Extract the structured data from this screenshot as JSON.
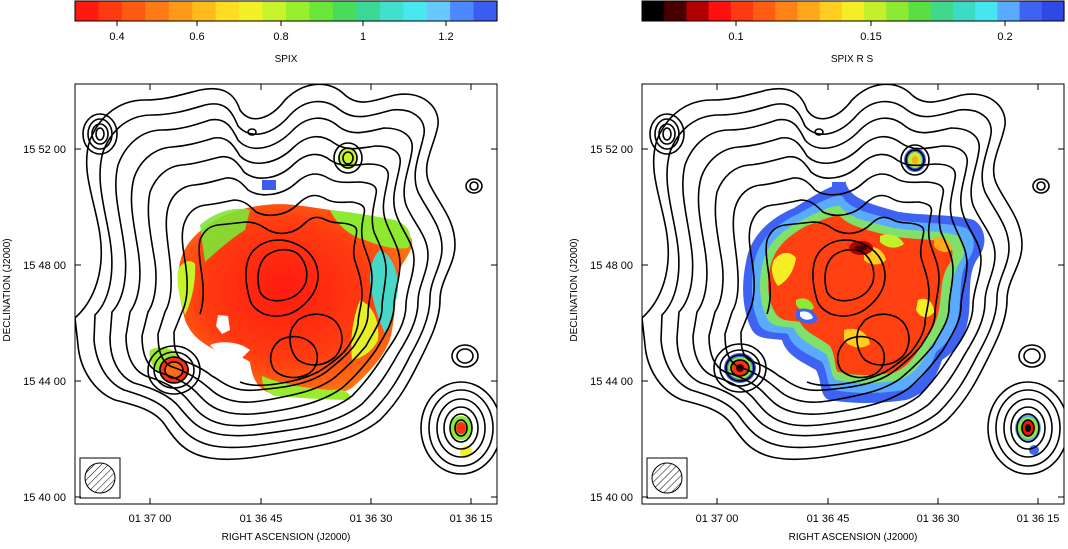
{
  "left": {
    "colorbar": {
      "label": "SPIX",
      "ticks": [
        "0.4",
        "0.6",
        "0.8",
        "1",
        "1.2"
      ],
      "colors": [
        "#ff1a10",
        "#ff3a10",
        "#ff5a12",
        "#ff7a14",
        "#ff9a18",
        "#ffbb1c",
        "#ffdd22",
        "#f2f026",
        "#c8f22a",
        "#98ef30",
        "#6ae63a",
        "#48dc5a",
        "#3cd896",
        "#40e0cc",
        "#48e8f0",
        "#66c8ff",
        "#4d88ff",
        "#3a5cf0"
      ]
    },
    "yaxis_label": "DECLINATION  (J2000)",
    "xaxis_label": "RIGHT ASCENSION  (J2000)",
    "yticks": [
      "15 52 00",
      "15 48 00",
      "15 44 00",
      "15 40 00"
    ],
    "xticks": [
      "01 37 00",
      "01 36 45",
      "01 36 30",
      "01 36 15"
    ]
  },
  "right": {
    "colorbar": {
      "label": "SPIX R   S",
      "ticks": [
        "0.1",
        "0.15",
        "0.2"
      ],
      "colors": [
        "#000000",
        "#4a0000",
        "#b00000",
        "#ff1010",
        "#ff3a10",
        "#ff5e12",
        "#ff8216",
        "#ffa81a",
        "#ffce20",
        "#f4ee26",
        "#c4f02a",
        "#8cea32",
        "#5ade44",
        "#40d88a",
        "#3cdcc4",
        "#46e6f0",
        "#5aaaff",
        "#3e62f2",
        "#2f48e6"
      ]
    },
    "yaxis_label": "DECLINATION  (J2000)",
    "xaxis_label": "RIGHT ASCENSION  (J2000)",
    "yticks": [
      "15 52 00",
      "15 48 00",
      "15 44 00",
      "15 40 00"
    ],
    "xticks": [
      "01 37 00",
      "01 36 45",
      "01 36 30",
      "01 36 15"
    ]
  }
}
